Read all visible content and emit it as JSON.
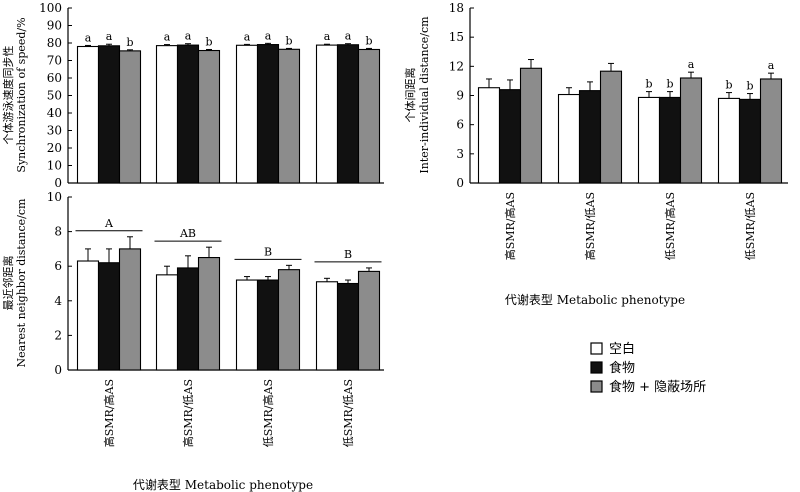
{
  "legend": [
    {
      "label": "空白",
      "color": "#ffffff"
    },
    {
      "label": "食物",
      "color": "#111111"
    },
    {
      "label": "食物 + 隐蔽场所",
      "color": "#8c8c8c"
    }
  ],
  "chart_data": [
    {
      "type": "bar",
      "ylabel_lines": [
        "个体游泳速度同步性",
        "Synchronization of speed/%"
      ],
      "xlabel": "",
      "categories": [
        "",
        "",
        "",
        ""
      ],
      "ylim": [
        0,
        100
      ],
      "yticks": [
        0,
        10,
        20,
        30,
        40,
        50,
        60,
        70,
        80,
        90,
        100
      ],
      "series": [
        {
          "values": [
            78.0,
            78.5,
            78.7,
            78.8
          ],
          "errors": [
            0.6,
            0.6,
            0.5,
            0.5
          ]
        },
        {
          "values": [
            78.4,
            78.8,
            79.1,
            79.0
          ],
          "errors": [
            0.9,
            0.8,
            0.7,
            0.6
          ]
        },
        {
          "values": [
            75.5,
            75.7,
            76.4,
            76.3
          ],
          "errors": [
            0.6,
            0.6,
            0.5,
            0.6
          ]
        }
      ],
      "sig_letters": [
        [
          "a",
          "a",
          "b"
        ],
        [
          "a",
          "a",
          "b"
        ],
        [
          "a",
          "a",
          "b"
        ],
        [
          "a",
          "a",
          "b"
        ]
      ],
      "grid": false
    },
    {
      "type": "bar",
      "ylabel_lines": [
        "个体间距离",
        "Inter-individual distance/cm"
      ],
      "xlabel": "代谢表型 Metabolic phenotype",
      "categories": [
        "高SMR/高AS",
        "高SMR/低AS",
        "低SMR/高AS",
        "低SMR/低AS"
      ],
      "ylim": [
        0,
        18
      ],
      "yticks": [
        0,
        3,
        6,
        9,
        12,
        15,
        18
      ],
      "series": [
        {
          "values": [
            9.8,
            9.1,
            8.8,
            8.7
          ],
          "errors": [
            0.9,
            0.7,
            0.6,
            0.6
          ]
        },
        {
          "values": [
            9.6,
            9.5,
            8.8,
            8.6
          ],
          "errors": [
            1.0,
            0.9,
            0.6,
            0.6
          ]
        },
        {
          "values": [
            11.8,
            11.5,
            10.8,
            10.7
          ],
          "errors": [
            0.9,
            0.8,
            0.6,
            0.6
          ]
        }
      ],
      "sig_letters": [
        null,
        null,
        [
          "b",
          "b",
          "a"
        ],
        [
          "b",
          "b",
          "a"
        ]
      ],
      "grid": false
    },
    {
      "type": "bar",
      "ylabel_lines": [
        "最近邻距离",
        "Nearest neighbor distance/cm"
      ],
      "xlabel": "代谢表型 Metabolic phenotype",
      "categories": [
        "高SMR/高AS",
        "高SMR/低AS",
        "低SMR/高AS",
        "低SMR/低AS"
      ],
      "ylim": [
        0,
        10
      ],
      "yticks": [
        0,
        2,
        4,
        6,
        8,
        10
      ],
      "series": [
        {
          "values": [
            6.3,
            5.5,
            5.2,
            5.1
          ],
          "errors": [
            0.7,
            0.5,
            0.2,
            0.2
          ]
        },
        {
          "values": [
            6.2,
            5.9,
            5.2,
            5.0
          ],
          "errors": [
            0.8,
            0.7,
            0.2,
            0.2
          ]
        },
        {
          "values": [
            7.0,
            6.5,
            5.8,
            5.7
          ],
          "errors": [
            0.7,
            0.6,
            0.25,
            0.2
          ]
        }
      ],
      "group_letters": [
        "A",
        "AB",
        "B",
        "B"
      ],
      "grid": false
    }
  ]
}
